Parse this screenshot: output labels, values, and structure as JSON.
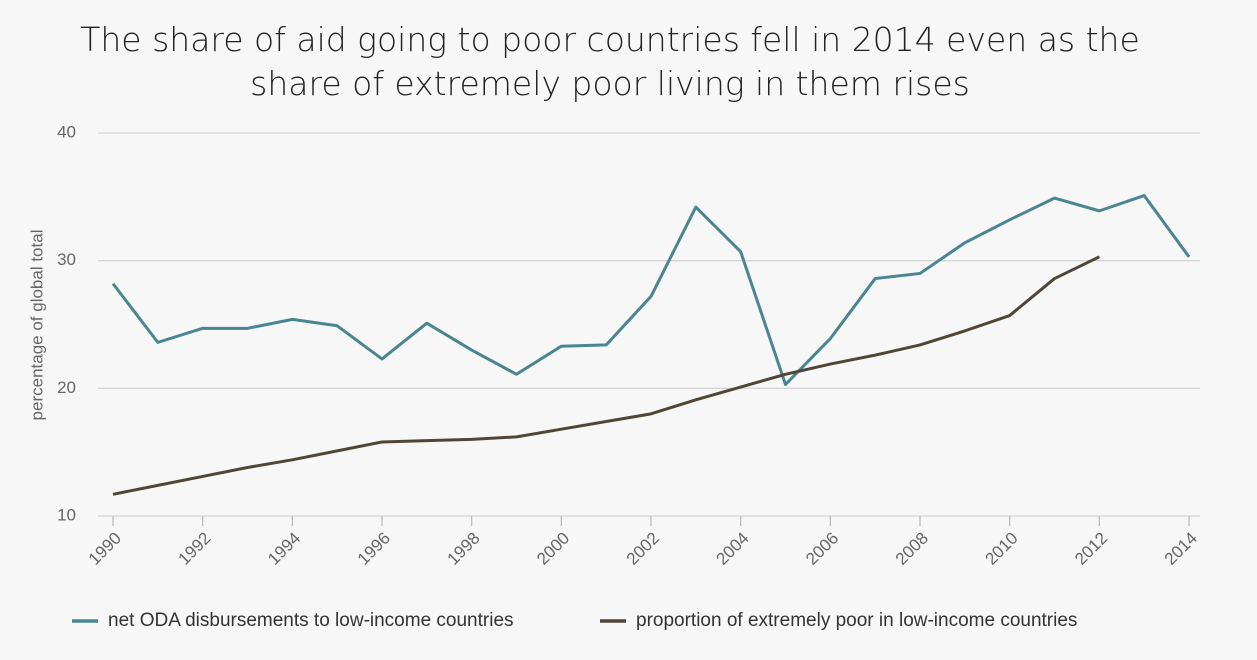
{
  "chart_data": {
    "type": "line",
    "title": "The share of aid going to poor countries fell in 2014 even as the share of extremely poor living in them rises",
    "y_label": "percentage of global total",
    "x": [
      1990,
      1991,
      1992,
      1993,
      1994,
      1995,
      1996,
      1997,
      1998,
      1999,
      2000,
      2001,
      2002,
      2003,
      2004,
      2005,
      2006,
      2007,
      2008,
      2009,
      2010,
      2011,
      2012,
      2013,
      2014
    ],
    "series": [
      {
        "name": "net ODA disbursements to low-income countries",
        "color": "#4a8592",
        "values": [
          28.2,
          23.6,
          24.7,
          24.7,
          25.4,
          24.9,
          22.3,
          25.1,
          23.0,
          21.1,
          23.3,
          23.4,
          27.2,
          34.2,
          30.7,
          20.3,
          23.9,
          28.6,
          29.0,
          31.4,
          33.2,
          34.9,
          33.9,
          35.1,
          30.3
        ]
      },
      {
        "name": "proportion of extremely poor in low-income countries",
        "color": "#4f4636",
        "values": [
          11.7,
          12.4,
          13.1,
          13.8,
          14.4,
          15.1,
          15.8,
          15.9,
          16.0,
          16.2,
          16.8,
          17.4,
          18.0,
          19.1,
          20.1,
          21.1,
          21.9,
          22.6,
          23.4,
          24.5,
          25.7,
          28.6,
          30.3,
          null,
          null
        ]
      }
    ],
    "xlim": [
      1990,
      2014
    ],
    "xticks": [
      1990,
      1992,
      1994,
      1996,
      1998,
      2000,
      2002,
      2004,
      2006,
      2008,
      2010,
      2012,
      2014
    ],
    "ylim": [
      10,
      40
    ],
    "yticks": [
      10,
      20,
      30,
      40
    ],
    "grid": true
  }
}
